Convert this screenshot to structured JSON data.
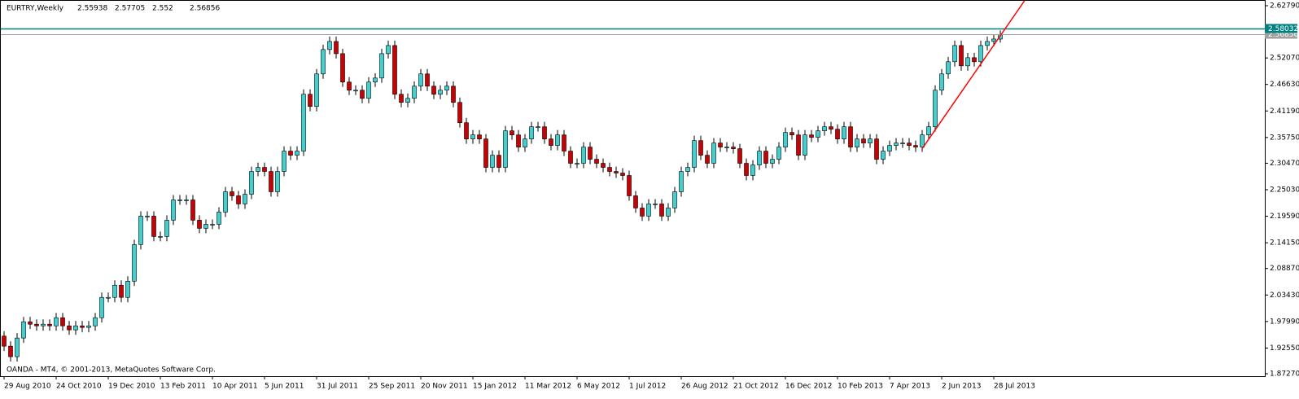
{
  "chart_data": {
    "type": "candlestick",
    "title": "EURTRY,Weekly",
    "watermark": "OANDA - MT4, © 2001-2013, MetaQuotes Software Corp.",
    "up_color": "#40d0d0",
    "down_color": "#cc0000",
    "wick_color": "#000000",
    "categories": [
      "29 Aug 2010",
      null,
      null,
      null,
      null,
      null,
      null,
      null,
      "24 Oct 2010",
      null,
      null,
      null,
      null,
      null,
      null,
      null,
      "19 Dec 2010",
      null,
      null,
      null,
      null,
      null,
      null,
      null,
      "13 Feb 2011",
      null,
      null,
      null,
      null,
      null,
      null,
      null,
      "10 Apr 2011",
      null,
      null,
      null,
      null,
      null,
      null,
      null,
      "5 Jun 2011",
      null,
      null,
      null,
      null,
      null,
      null,
      null,
      "31 Jul 2011",
      null,
      null,
      null,
      null,
      null,
      null,
      null,
      "25 Sep 2011",
      null,
      null,
      null,
      null,
      null,
      null,
      null,
      "20 Nov 2011",
      null,
      null,
      null,
      null,
      null,
      null,
      null,
      "15 Jan 2012",
      null,
      null,
      null,
      null,
      null,
      null,
      null,
      "11 Mar 2012",
      null,
      null,
      null,
      null,
      null,
      null,
      null,
      "6 May 2012",
      null,
      null,
      null,
      null,
      null,
      null,
      null,
      "1 Jul 2012",
      null,
      null,
      null,
      null,
      null,
      null,
      null,
      "26 Aug 2012",
      null,
      null,
      null,
      null,
      null,
      null,
      null,
      "21 Oct 2012",
      null,
      null,
      null,
      null,
      null,
      null,
      null,
      "16 Dec 2012",
      null,
      null,
      null,
      null,
      null,
      null,
      null,
      "10 Feb 2013",
      null,
      null,
      null,
      null,
      null,
      null,
      null,
      "7 Apr 2013",
      null,
      null,
      null,
      null,
      null,
      null,
      null,
      "2 Jun 2013",
      null,
      null,
      null,
      null,
      null,
      null,
      null,
      "28 Jul 2013",
      null
    ],
    "open": [
      1.95,
      1.9293,
      1.9077,
      1.946,
      1.9794,
      1.9743,
      1.971,
      1.9743,
      1.971,
      1.9877,
      1.971,
      1.9627,
      1.971,
      1.9677,
      1.971,
      1.9877,
      2.0294,
      2.0294,
      2.0544,
      2.0294,
      2.0627,
      2.1377,
      2.1961,
      2.1961,
      2.1544,
      2.1544,
      2.1878,
      2.2294,
      2.2294,
      2.2294,
      2.1878,
      2.1711,
      2.1794,
      2.1794,
      2.2044,
      2.2461,
      2.2378,
      2.2211,
      2.2411,
      2.2878,
      2.2961,
      2.2878,
      2.2461,
      2.2878,
      2.3295,
      2.3211,
      2.3295,
      2.4462,
      2.4212,
      2.4879,
      2.5379,
      2.5545,
      2.5295,
      2.4712,
      2.4545,
      2.4545,
      2.4378,
      2.4712,
      2.4795,
      2.5295,
      2.5462,
      2.4462,
      2.4295,
      2.4378,
      2.4628,
      2.4879,
      2.4628,
      2.4462,
      2.4545,
      2.4628,
      2.4295,
      2.3878,
      2.3545,
      2.3628,
      2.3545,
      2.2961,
      2.3211,
      2.2961,
      2.3712,
      2.3628,
      2.3378,
      2.3545,
      2.3795,
      2.3795,
      2.3545,
      2.3411,
      2.3628,
      2.3295,
      2.3045,
      2.3045,
      2.3378,
      2.3128,
      2.3045,
      2.2961,
      2.2878,
      2.2845,
      2.2795,
      2.2378,
      2.2128,
      2.1961,
      2.2211,
      2.2211,
      2.1961,
      2.2128,
      2.2461,
      2.2878,
      2.2961,
      2.3511,
      2.3211,
      2.3045,
      2.3461,
      2.3378,
      2.3378,
      2.3345,
      2.3045,
      2.2795,
      2.3011,
      2.3295,
      2.3045,
      2.3128,
      2.3378,
      2.3678,
      2.3628,
      2.3211,
      2.3628,
      2.3578,
      2.3712,
      2.3795,
      2.3745,
      2.3545,
      2.3795,
      2.3378,
      2.3545,
      2.3461,
      2.3545,
      2.3128,
      2.3295,
      2.3411,
      2.3461,
      2.3461,
      2.3411,
      2.3378,
      2.3628,
      2.3795,
      2.4545,
      2.4879,
      2.5129,
      2.5462,
      2.5045,
      2.5212,
      2.5129,
      2.5462,
      2.5545,
      2.55938
    ],
    "high": [
      1.96,
      1.9393,
      1.956,
      1.9894,
      1.9894,
      1.9843,
      1.9843,
      1.9843,
      1.9977,
      1.9977,
      1.981,
      1.981,
      1.981,
      1.981,
      1.9977,
      2.0394,
      2.0394,
      2.0644,
      2.0644,
      2.0727,
      2.1477,
      2.2061,
      2.2061,
      2.2061,
      2.1644,
      2.1978,
      2.2394,
      2.2394,
      2.2394,
      2.2394,
      2.1978,
      2.1894,
      2.1894,
      2.2144,
      2.2561,
      2.2561,
      2.2478,
      2.2511,
      2.2978,
      2.3061,
      2.3061,
      2.2978,
      2.2978,
      2.3395,
      2.3395,
      2.3395,
      2.4562,
      2.4562,
      2.4979,
      2.5479,
      2.5645,
      2.5645,
      2.5395,
      2.4812,
      2.4645,
      2.4645,
      2.4812,
      2.4895,
      2.5395,
      2.5562,
      2.5562,
      2.4562,
      2.4478,
      2.4728,
      2.4979,
      2.4979,
      2.4728,
      2.4645,
      2.4728,
      2.4728,
      2.4395,
      2.3978,
      2.3728,
      2.3728,
      2.3645,
      2.3311,
      2.3311,
      2.3812,
      2.3812,
      2.3728,
      2.3645,
      2.3895,
      2.3895,
      2.3895,
      2.3645,
      2.3728,
      2.3728,
      2.3395,
      2.3145,
      2.3478,
      2.3478,
      2.3228,
      2.3145,
      2.3061,
      2.2978,
      2.2945,
      2.2895,
      2.2478,
      2.2228,
      2.2311,
      2.2311,
      2.2311,
      2.2228,
      2.2561,
      2.2978,
      2.3061,
      2.3611,
      2.3611,
      2.3311,
      2.3561,
      2.3561,
      2.3478,
      2.3478,
      2.3445,
      2.3145,
      2.3111,
      2.3395,
      2.3395,
      2.3228,
      2.3478,
      2.3778,
      2.3778,
      2.3728,
      2.3728,
      2.3728,
      2.3812,
      2.3895,
      2.3895,
      2.3845,
      2.3895,
      2.3895,
      2.3645,
      2.3645,
      2.3645,
      2.3645,
      2.3395,
      2.3511,
      2.3561,
      2.3561,
      2.3561,
      2.3511,
      2.3728,
      2.3895,
      2.4645,
      2.4979,
      2.5229,
      2.5562,
      2.5562,
      2.5312,
      2.5312,
      2.5562,
      2.5645,
      2.5695,
      2.57705
    ],
    "low": [
      1.9193,
      1.8977,
      1.8977,
      1.936,
      1.9643,
      1.961,
      1.961,
      1.961,
      1.961,
      1.961,
      1.9527,
      1.9527,
      1.9577,
      1.9577,
      1.961,
      1.9777,
      2.0194,
      2.0194,
      2.0194,
      2.0194,
      2.0527,
      2.1277,
      2.1861,
      2.1444,
      2.1444,
      2.1444,
      2.1778,
      2.2194,
      2.2194,
      2.1778,
      2.1611,
      2.1611,
      2.1694,
      2.1694,
      2.1944,
      2.2278,
      2.2111,
      2.2111,
      2.2311,
      2.2778,
      2.2778,
      2.2361,
      2.2361,
      2.2778,
      2.3111,
      2.3111,
      2.3195,
      2.4112,
      2.4112,
      2.4779,
      2.5279,
      2.5195,
      2.4612,
      2.4445,
      2.4445,
      2.4278,
      2.4278,
      2.4612,
      2.4695,
      2.5195,
      2.4362,
      2.4195,
      2.4195,
      2.4278,
      2.4528,
      2.4528,
      2.4362,
      2.4362,
      2.4445,
      2.4195,
      2.3778,
      2.3445,
      2.3445,
      2.3445,
      2.2861,
      2.2861,
      2.2861,
      2.2861,
      2.3528,
      2.3278,
      2.3278,
      2.3445,
      2.3695,
      2.3445,
      2.3311,
      2.3311,
      2.3195,
      2.2945,
      2.2945,
      2.2945,
      2.3028,
      2.2945,
      2.2861,
      2.2778,
      2.2745,
      2.2695,
      2.2278,
      2.2028,
      2.1861,
      2.1861,
      2.2111,
      2.1861,
      2.1861,
      2.2028,
      2.2361,
      2.2778,
      2.2861,
      2.3111,
      2.2945,
      2.2945,
      2.3278,
      2.3278,
      2.3245,
      2.2945,
      2.2695,
      2.2695,
      2.2911,
      2.2945,
      2.2945,
      2.3028,
      2.3278,
      2.3528,
      2.3111,
      2.3111,
      2.3478,
      2.3478,
      2.3612,
      2.3645,
      2.3445,
      2.3445,
      2.3278,
      2.3278,
      2.3361,
      2.3361,
      2.3028,
      2.3028,
      2.3195,
      2.3311,
      2.3361,
      2.3311,
      2.3278,
      2.3278,
      2.3528,
      2.3695,
      2.4445,
      2.4779,
      2.5029,
      2.4945,
      2.4945,
      2.5029,
      2.5029,
      2.5362,
      2.5445,
      2.552
    ],
    "close": [
      1.9293,
      1.9077,
      1.946,
      1.9794,
      1.9743,
      1.971,
      1.9743,
      1.971,
      1.9877,
      1.971,
      1.9627,
      1.971,
      1.9677,
      1.971,
      1.9877,
      2.0294,
      2.0294,
      2.0544,
      2.0294,
      2.0627,
      2.1377,
      2.1961,
      2.1961,
      2.1544,
      2.1544,
      2.1878,
      2.2294,
      2.2294,
      2.2294,
      2.1878,
      2.1711,
      2.1794,
      2.1794,
      2.2044,
      2.2461,
      2.2378,
      2.2211,
      2.2411,
      2.2878,
      2.2961,
      2.2878,
      2.2461,
      2.2878,
      2.3295,
      2.3211,
      2.3295,
      2.4462,
      2.4212,
      2.4879,
      2.5379,
      2.5545,
      2.5295,
      2.4712,
      2.4545,
      2.4545,
      2.4378,
      2.4712,
      2.4795,
      2.5295,
      2.5462,
      2.4462,
      2.4295,
      2.4378,
      2.4628,
      2.4879,
      2.4628,
      2.4462,
      2.4545,
      2.4628,
      2.4295,
      2.3878,
      2.3545,
      2.3628,
      2.3545,
      2.2961,
      2.3211,
      2.2961,
      2.3712,
      2.3628,
      2.3378,
      2.3545,
      2.3795,
      2.3795,
      2.3545,
      2.3411,
      2.3628,
      2.3295,
      2.3045,
      2.3045,
      2.3378,
      2.3128,
      2.3045,
      2.2961,
      2.2878,
      2.2845,
      2.2795,
      2.2378,
      2.2128,
      2.1961,
      2.2211,
      2.2211,
      2.1961,
      2.2128,
      2.2461,
      2.2878,
      2.2961,
      2.3511,
      2.3211,
      2.3045,
      2.3461,
      2.3378,
      2.3378,
      2.3345,
      2.3045,
      2.2795,
      2.3011,
      2.3295,
      2.3045,
      2.3128,
      2.3378,
      2.3678,
      2.3628,
      2.3211,
      2.3628,
      2.3578,
      2.3712,
      2.3795,
      2.3745,
      2.3545,
      2.3795,
      2.3378,
      2.3545,
      2.3461,
      2.3545,
      2.3128,
      2.3295,
      2.3411,
      2.3461,
      2.3461,
      2.3411,
      2.3378,
      2.3628,
      2.3795,
      2.4545,
      2.4879,
      2.5129,
      2.5462,
      2.5045,
      2.5212,
      2.5129,
      2.5462,
      2.5545,
      2.5595,
      2.56856
    ],
    "hline": {
      "value": 2.58032,
      "color": "#008080"
    },
    "trendline": {
      "x": [
        141,
        153
      ],
      "y": [
        2.3345,
        2.5662
      ],
      "color": "#ff0000"
    },
    "ylim": [
      1.8677,
      2.6379
    ],
    "yticks": [
      {
        "value": 2.6279,
        "label": "2.62790"
      },
      {
        "value": 2.5207,
        "label": "2.52070"
      },
      {
        "value": 2.4663,
        "label": "2.46630"
      },
      {
        "value": 2.4119,
        "label": "2.41190"
      },
      {
        "value": 2.3575,
        "label": "2.35750"
      },
      {
        "value": 2.3047,
        "label": "2.30470"
      },
      {
        "value": 2.2503,
        "label": "2.25030"
      },
      {
        "value": 2.1959,
        "label": "2.19590"
      },
      {
        "value": 2.1415,
        "label": "2.14150"
      },
      {
        "value": 2.0887,
        "label": "2.08870"
      },
      {
        "value": 2.0343,
        "label": "2.03430"
      },
      {
        "value": 1.9799,
        "label": "1.97990"
      },
      {
        "value": 1.9255,
        "label": "1.92550"
      },
      {
        "value": 1.8727,
        "label": "1.87270"
      }
    ]
  }
}
